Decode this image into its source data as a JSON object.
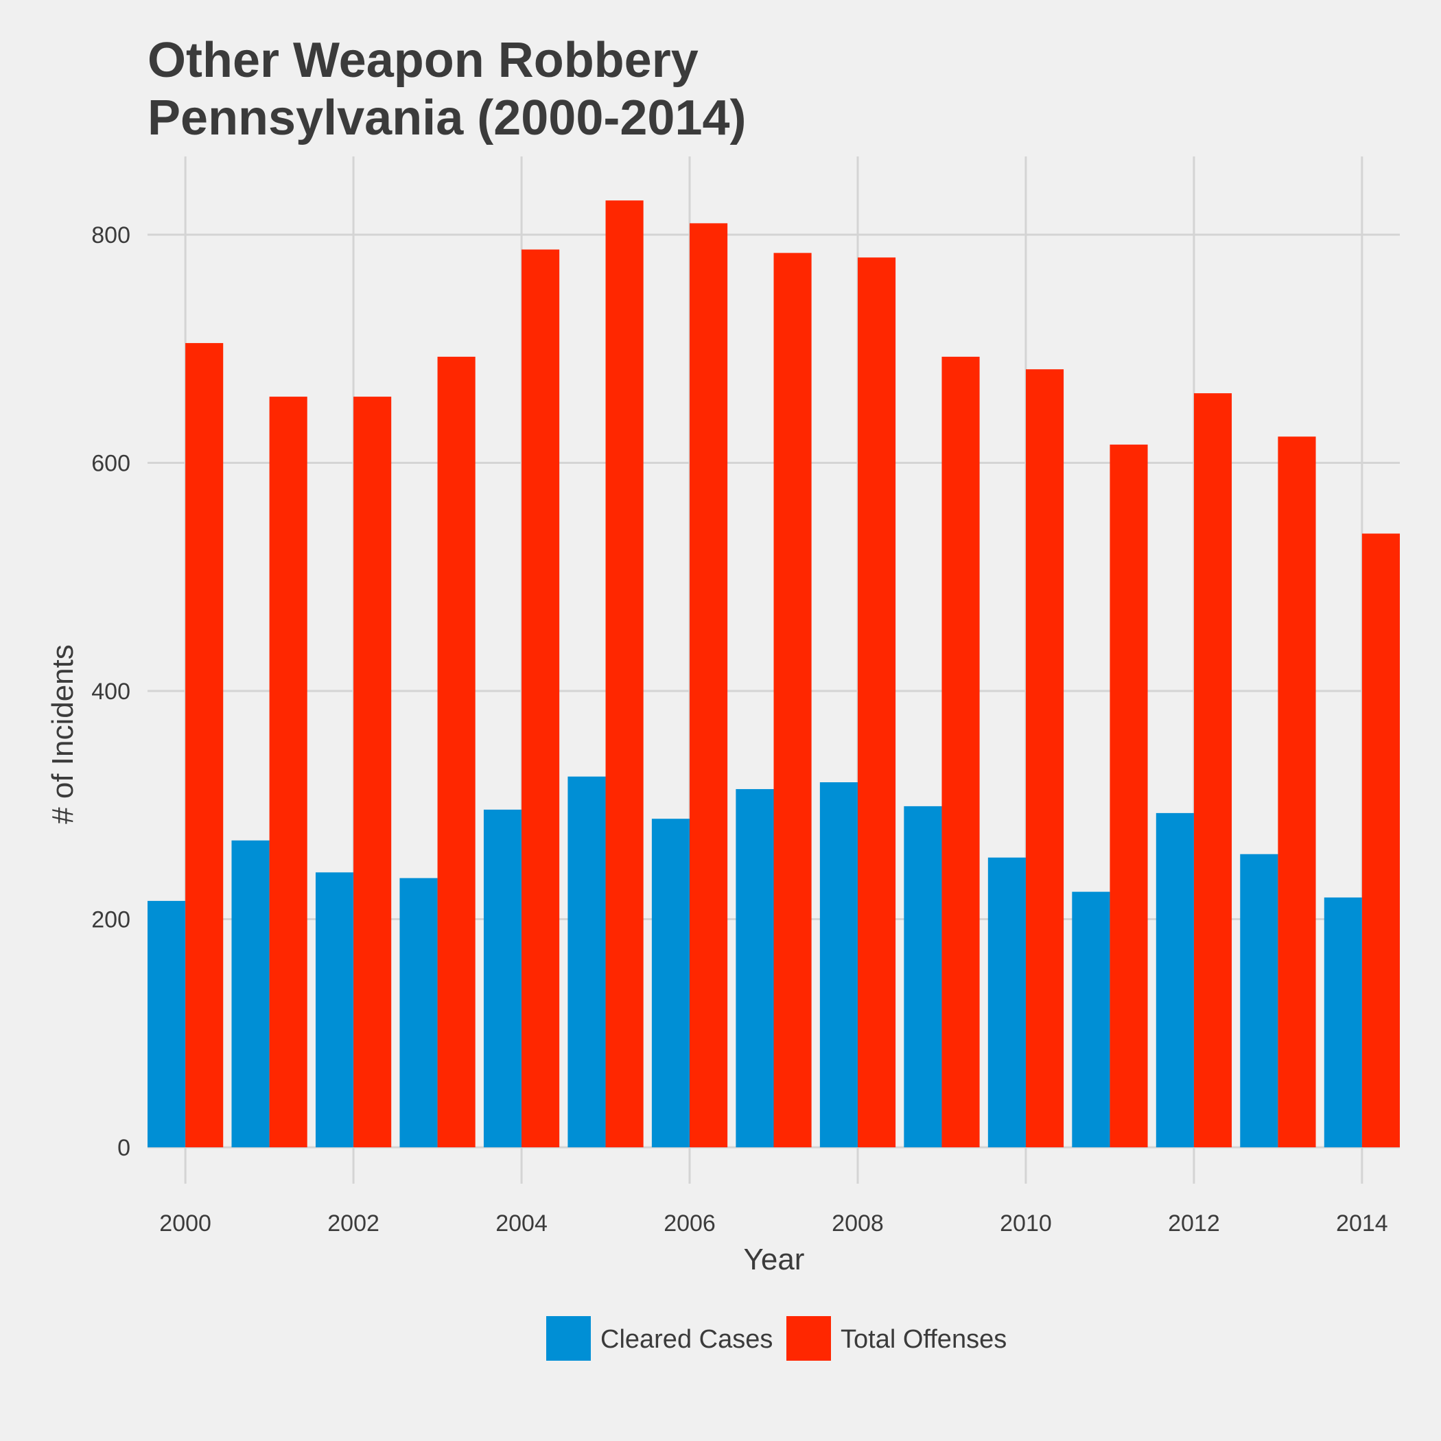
{
  "chart_data": {
    "type": "bar",
    "title": "Other Weapon Robbery",
    "subtitle": "Pennsylvania (2000-2014)",
    "xlabel": "Year",
    "ylabel": "# of Incidents",
    "x": [
      2000,
      2001,
      2002,
      2003,
      2004,
      2005,
      2006,
      2007,
      2008,
      2009,
      2010,
      2011,
      2012,
      2013,
      2014
    ],
    "x_ticks": [
      "2000",
      "2002",
      "2004",
      "2006",
      "2008",
      "2010",
      "2012",
      "2014"
    ],
    "y_ticks": [
      "0",
      "200",
      "400",
      "600",
      "800"
    ],
    "ylim": [
      0,
      860
    ],
    "xlim": [
      1999.55,
      2014.45
    ],
    "grid": true,
    "legend_position": "bottom",
    "series": [
      {
        "name": "Cleared Cases",
        "color": "#008fd5",
        "values": [
          216,
          269,
          241,
          236,
          296,
          325,
          288,
          314,
          320,
          299,
          254,
          224,
          293,
          257,
          219
        ]
      },
      {
        "name": "Total Offenses",
        "color": "#ff2700",
        "values": [
          705,
          658,
          658,
          693,
          787,
          830,
          810,
          784,
          780,
          693,
          682,
          616,
          661,
          623,
          538
        ]
      }
    ]
  }
}
